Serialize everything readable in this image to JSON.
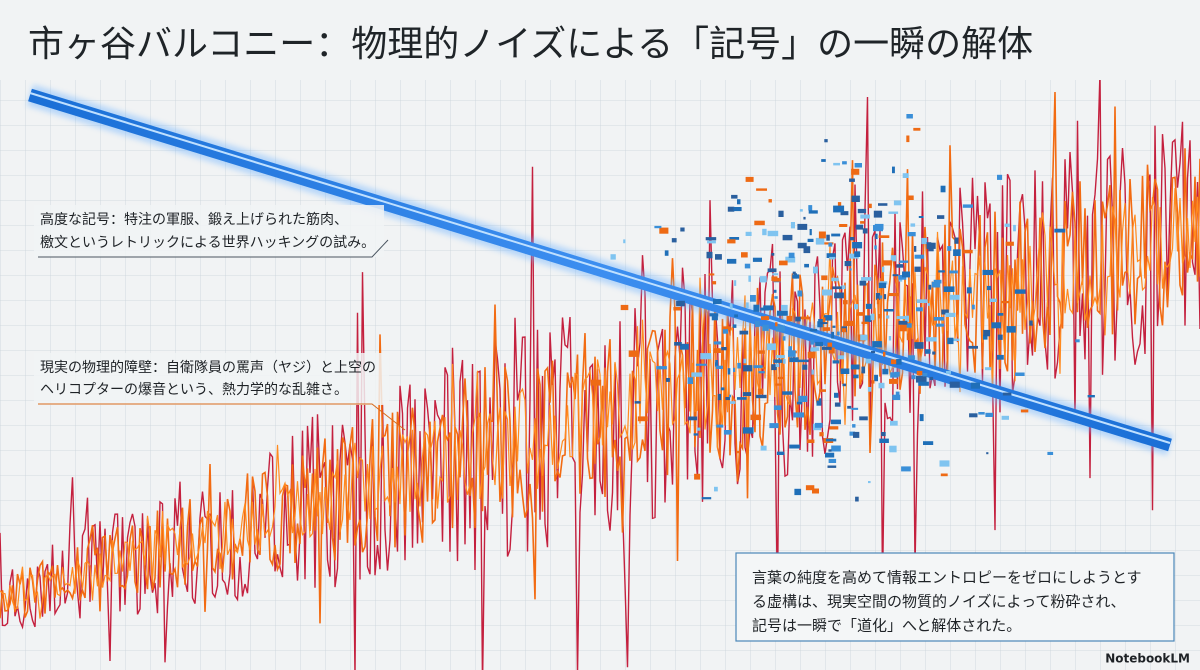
{
  "title": "市ヶ谷バルコニー：物理的ノイズによる「記号」の一瞬の解体",
  "annotations": [
    {
      "lines": [
        "高度な記号：特注の軍服、鍛え上げられた筋肉、",
        "檄文というレトリックによる世界ハッキングの試み。"
      ]
    },
    {
      "lines": [
        "現実の物理的障壁：自衛隊員の罵声（ヤジ）と上空の",
        "ヘリコプターの爆音という、熱力学的な乱雑さ。"
      ]
    }
  ],
  "conclusion": {
    "lines": [
      "言葉の純度を高めて情報エントロピーをゼロにしようとす",
      "る虚構は、現実空間の物質的ノイズによって粉砕され、",
      "記号は一瞬で「道化」へと解体された。"
    ]
  },
  "brand": "NotebookLM"
}
